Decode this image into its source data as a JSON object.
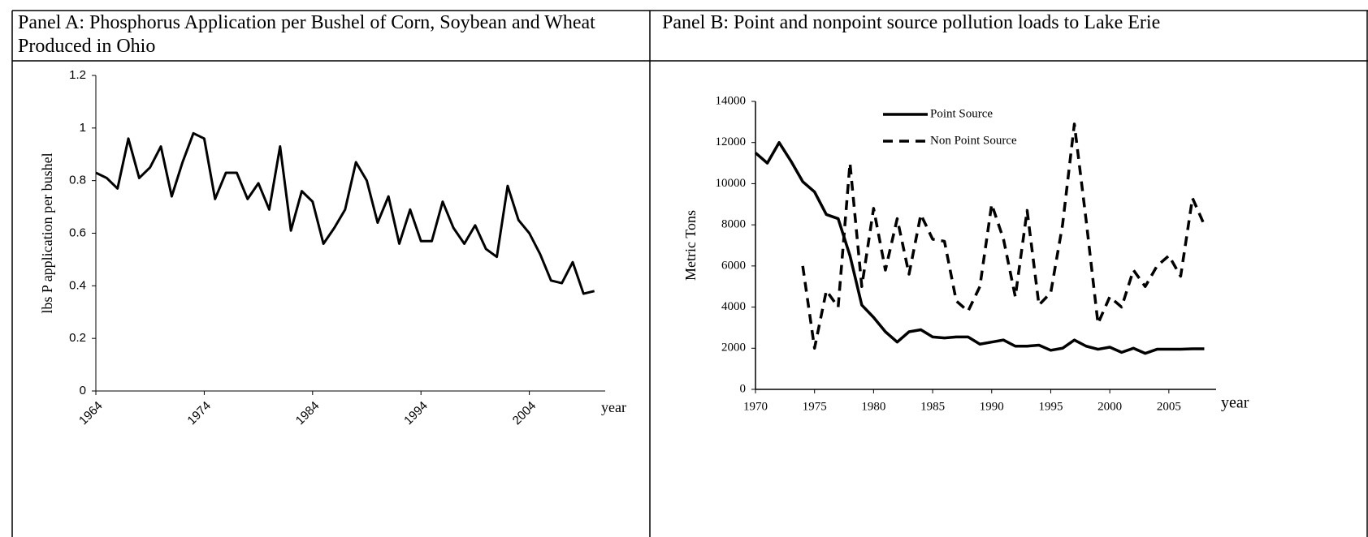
{
  "chart_data": [
    {
      "type": "line",
      "title": "Panel A: Phosphorus Application per Bushel of Corn, Soybean and Wheat Produced in Ohio",
      "y_label": "lbs P application per bushel",
      "x_label": "year",
      "x": [
        1964,
        1965,
        1966,
        1967,
        1968,
        1969,
        1970,
        1971,
        1972,
        1973,
        1974,
        1975,
        1976,
        1977,
        1978,
        1979,
        1980,
        1981,
        1982,
        1983,
        1984,
        1985,
        1986,
        1987,
        1988,
        1989,
        1990,
        1991,
        1992,
        1993,
        1994,
        1995,
        1996,
        1997,
        1998,
        1999,
        2000,
        2001,
        2002,
        2003,
        2004,
        2005,
        2006,
        2007,
        2008,
        2009,
        2010
      ],
      "series": [
        {
          "color": "#000000",
          "line_style": "solid",
          "values": [
            0.83,
            0.81,
            0.77,
            0.96,
            0.81,
            0.85,
            0.93,
            0.74,
            0.87,
            0.98,
            0.96,
            0.73,
            0.83,
            0.83,
            0.73,
            0.79,
            0.69,
            0.93,
            0.61,
            0.76,
            0.72,
            0.56,
            0.62,
            0.69,
            0.87,
            0.8,
            0.64,
            0.74,
            0.56,
            0.69,
            0.57,
            0.57,
            0.72,
            0.62,
            0.56,
            0.63,
            0.54,
            0.51,
            0.78,
            0.65,
            0.6,
            0.52,
            0.42,
            0.41,
            0.49,
            0.37,
            0.38
          ]
        }
      ],
      "xlim": [
        1964,
        2011
      ],
      "xticks": [
        1964,
        1974,
        1984,
        1994,
        2004
      ],
      "ylim": [
        0,
        1.2
      ],
      "yticks": [
        0,
        0.2,
        0.4,
        0.6,
        0.8,
        1,
        1.2
      ]
    },
    {
      "type": "line",
      "title": "Panel B: Point and nonpoint source pollution loads to Lake Erie",
      "y_label": "Metric Tons",
      "x_label": "year",
      "x": [
        1970,
        1971,
        1972,
        1973,
        1974,
        1975,
        1976,
        1977,
        1978,
        1979,
        1980,
        1981,
        1982,
        1983,
        1984,
        1985,
        1986,
        1987,
        1988,
        1989,
        1990,
        1991,
        1992,
        1993,
        1994,
        1995,
        1996,
        1997,
        1998,
        1999,
        2000,
        2001,
        2002,
        2003,
        2004,
        2005,
        2006,
        2007,
        2008
      ],
      "series": [
        {
          "name": "Point Source",
          "color": "#000000",
          "line_style": "solid",
          "values": [
            11500,
            11000,
            12000,
            11100,
            10100,
            9600,
            8500,
            8300,
            6500,
            4100,
            3500,
            2800,
            2300,
            2800,
            2900,
            2550,
            2500,
            2550,
            2550,
            2200,
            2300,
            2400,
            2100,
            2100,
            2150,
            1900,
            2000,
            2400,
            2100,
            1950,
            2050,
            1800,
            2000,
            1750,
            1950,
            1950,
            1950,
            1970,
            1970
          ]
        },
        {
          "name": "Non Point Source",
          "color": "#000000",
          "line_style": "dashed",
          "values": [
            null,
            null,
            null,
            null,
            6000,
            2000,
            4800,
            4000,
            11000,
            5000,
            8800,
            5800,
            8300,
            5600,
            8500,
            7300,
            7200,
            4300,
            3800,
            5000,
            9000,
            7300,
            4500,
            8700,
            4100,
            4700,
            8000,
            12900,
            8200,
            3200,
            4500,
            4000,
            5800,
            5000,
            6000,
            6500,
            5500,
            9300,
            8000
          ]
        }
      ],
      "legend": "upper left",
      "xlim": [
        1970,
        2009
      ],
      "xticks": [
        1970,
        1975,
        1980,
        1985,
        1990,
        1995,
        2000,
        2005
      ],
      "ylim": [
        0,
        14000
      ],
      "yticks": [
        0,
        2000,
        4000,
        6000,
        8000,
        10000,
        12000,
        14000
      ]
    }
  ]
}
